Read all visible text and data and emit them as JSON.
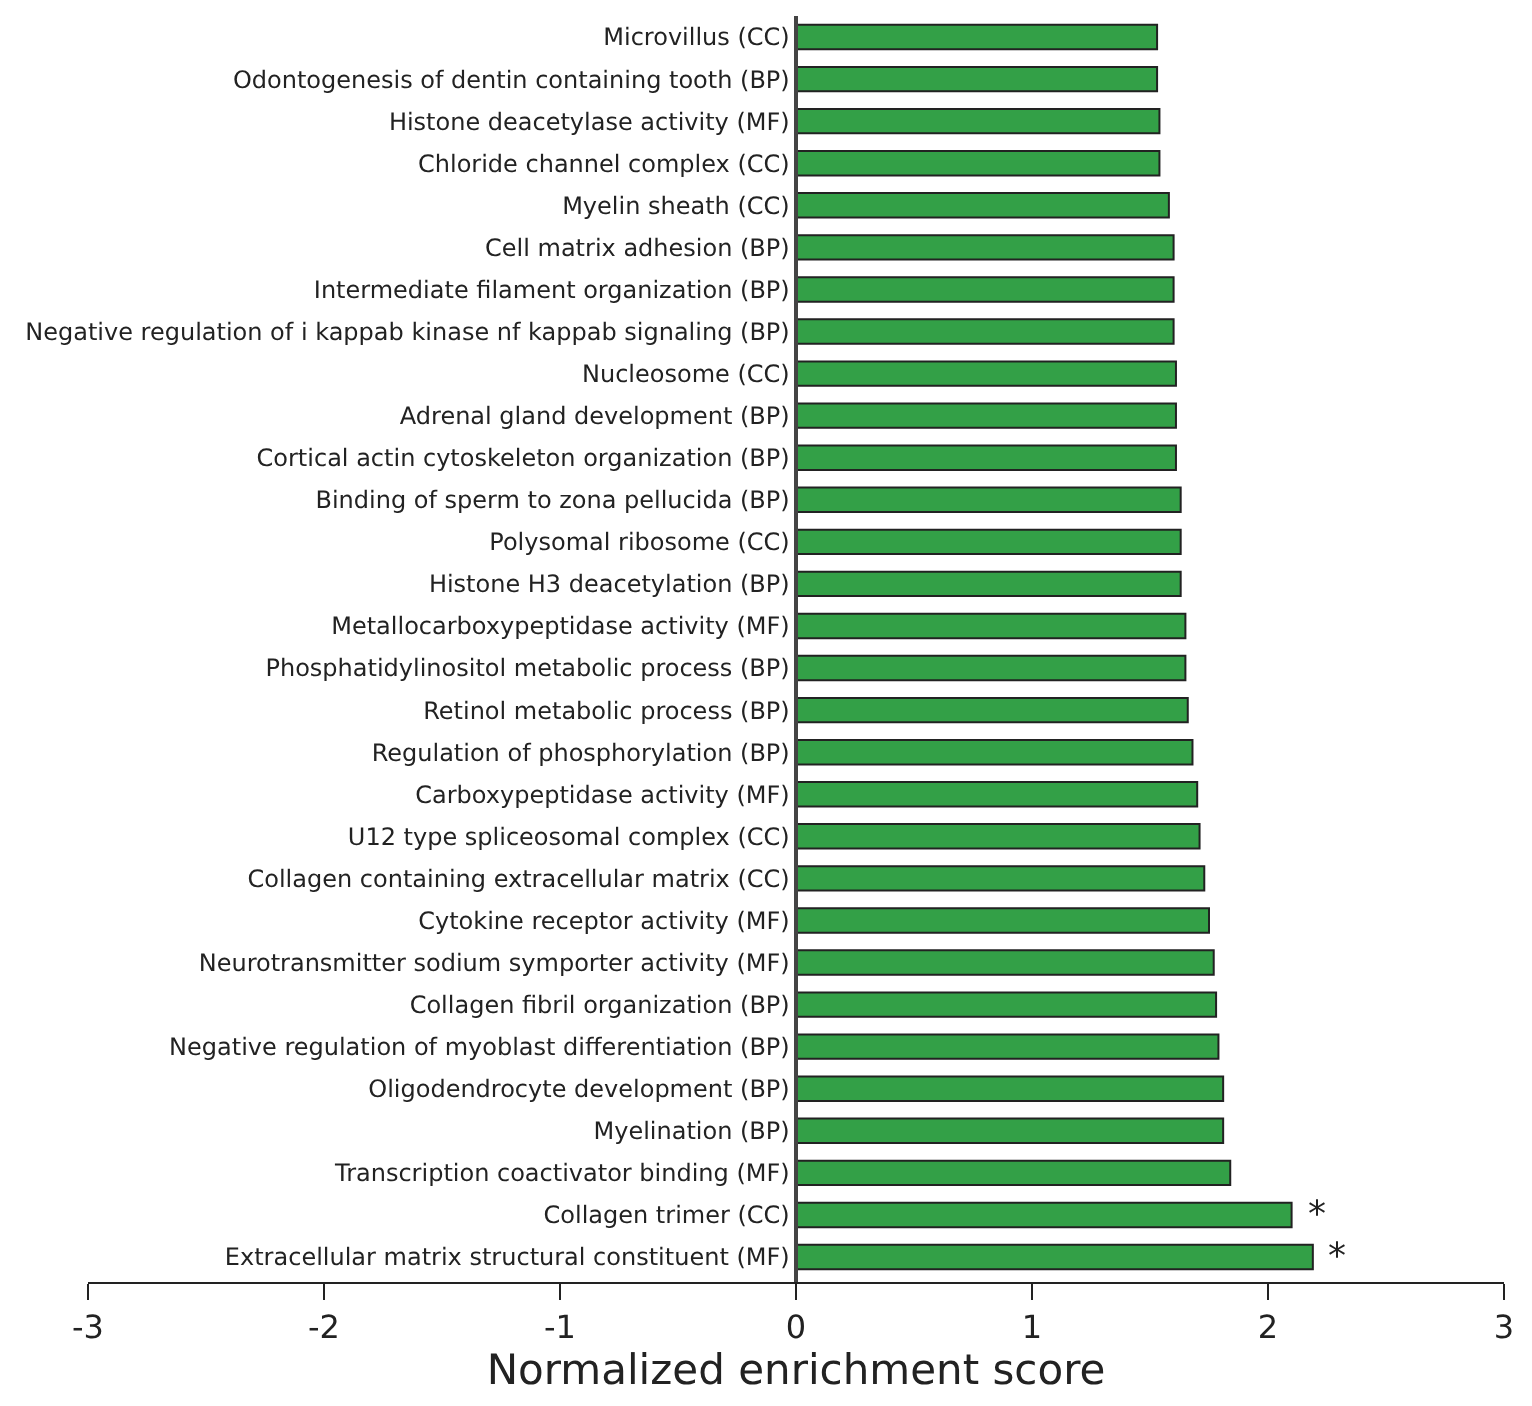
{
  "chart_data": {
    "type": "bar",
    "orientation": "horizontal",
    "xlabel": "Normalized enrichment score",
    "categories": [
      "Microvillus (CC)",
      "Odontogenesis of dentin containing tooth (BP)",
      "Histone deacetylase activity (MF)",
      "Chloride channel complex (CC)",
      "Myelin sheath (CC)",
      "Cell matrix adhesion (BP)",
      "Intermediate filament organization (BP)",
      "Negative regulation of i kappab kinase nf kappab signaling (BP)",
      "Nucleosome (CC)",
      "Adrenal gland development (BP)",
      "Cortical actin cytoskeleton organization (BP)",
      "Binding of sperm to zona pellucida (BP)",
      "Polysomal ribosome (CC)",
      "Histone H3 deacetylation (BP)",
      "Metallocarboxypeptidase activity (MF)",
      "Phosphatidylinositol metabolic process (BP)",
      "Retinol metabolic process (BP)",
      "Regulation of phosphorylation (BP)",
      "Carboxypeptidase activity (MF)",
      "U12 type spliceosomal complex (CC)",
      "Collagen containing extracellular matrix (CC)",
      "Cytokine receptor activity (MF)",
      "Neurotransmitter sodium symporter activity (MF)",
      "Collagen fibril organization (BP)",
      "Negative regulation of myoblast differentiation (BP)",
      "Oligodendrocyte development (BP)",
      "Myelination (BP)",
      "Transcription coactivator binding (MF)",
      "Collagen trimer (CC)",
      "Extracellular matrix structural constituent (MF)"
    ],
    "values": [
      1.53,
      1.53,
      1.54,
      1.54,
      1.58,
      1.6,
      1.6,
      1.6,
      1.61,
      1.61,
      1.61,
      1.63,
      1.63,
      1.63,
      1.65,
      1.65,
      1.66,
      1.68,
      1.7,
      1.71,
      1.73,
      1.75,
      1.77,
      1.78,
      1.79,
      1.81,
      1.81,
      1.84,
      2.1,
      2.19
    ],
    "color": "#33a047",
    "xlim": [
      -3,
      3
    ],
    "xticks": [
      -3,
      -2,
      -1,
      0,
      1,
      2,
      3
    ],
    "annotations": [
      {
        "text": "*",
        "x": 2.1,
        "y": "Collagen trimer (CC)"
      },
      {
        "text": "*",
        "x": 2.19,
        "y": "Extracellular matrix structural constituent (MF)"
      }
    ]
  }
}
